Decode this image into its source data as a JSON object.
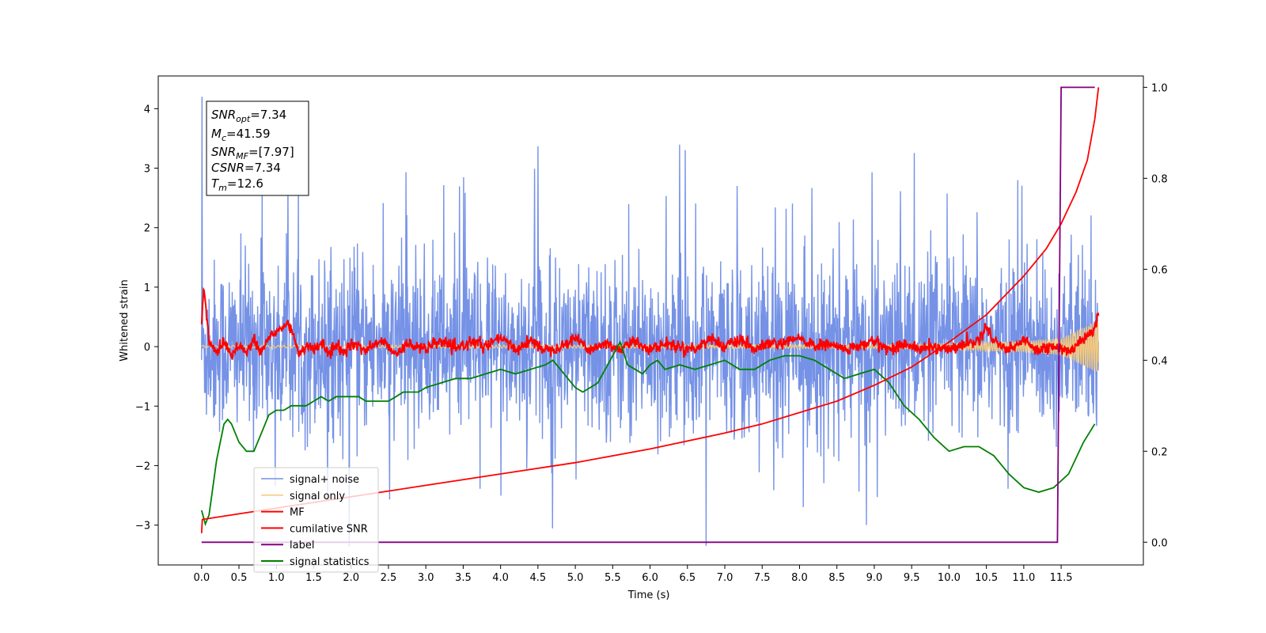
{
  "chart_data": {
    "type": "line",
    "title": "",
    "xlabel": "Time (s)",
    "ylabel": "Whitened strain",
    "xlim": [
      -0.58,
      12.6
    ],
    "ylim": [
      -3.67,
      4.55
    ],
    "y2lim": [
      -0.05,
      1.025
    ],
    "grid": false,
    "legend_position": "lower-left",
    "x_ticks": [
      "0.0",
      "0.5",
      "1.0",
      "1.5",
      "2.0",
      "2.5",
      "3.0",
      "3.5",
      "4.0",
      "4.5",
      "5.0",
      "5.5",
      "6.0",
      "6.5",
      "7.0",
      "7.5",
      "8.0",
      "8.5",
      "9.0",
      "9.5",
      "10.0",
      "10.5",
      "11.0",
      "11.5"
    ],
    "y_ticks": [
      "4",
      "3",
      "2",
      "1",
      "0",
      "−1",
      "−2",
      "−3"
    ],
    "y2_ticks": [
      "1.0",
      "0.8",
      "0.6",
      "0.4",
      "0.2",
      "0.0"
    ],
    "info_box": {
      "snr_opt": "7.34",
      "mc": "41.59",
      "snr_mf": "[7.97]",
      "csnr": "7.34",
      "tm": "12.6"
    },
    "series": [
      {
        "name": "signal+ noise",
        "color": "#7592e6",
        "axis": "left",
        "envelope": {
          "mean": 0.0,
          "std": 0.72,
          "spike_max": 4.2,
          "spike_min": -3.35
        }
      },
      {
        "name": "signal only",
        "color": "#f5c97a",
        "axis": "left",
        "description_points": {
          "x": [
            0.0,
            9.0,
            10.0,
            11.0,
            11.5,
            12.0
          ],
          "amplitude": [
            0.02,
            0.03,
            0.05,
            0.09,
            0.14,
            0.45
          ]
        }
      },
      {
        "name": "MF",
        "color": "#ff0000",
        "axis": "left",
        "x": [
          0.0,
          0.03,
          0.1,
          0.2,
          0.3,
          0.4,
          0.5,
          0.6,
          0.7,
          0.8,
          0.9,
          1.0,
          1.1,
          1.15,
          1.2,
          1.3,
          1.4,
          1.5,
          1.6,
          1.7,
          1.8,
          1.9,
          2.0,
          2.2,
          2.4,
          2.6,
          2.8,
          3.0,
          3.2,
          3.4,
          3.6,
          3.8,
          4.0,
          4.2,
          4.4,
          4.6,
          4.8,
          5.0,
          5.2,
          5.4,
          5.6,
          5.8,
          6.0,
          6.2,
          6.4,
          6.6,
          6.8,
          7.0,
          7.2,
          7.4,
          7.6,
          7.8,
          8.0,
          8.2,
          8.4,
          8.6,
          8.8,
          9.0,
          9.2,
          9.4,
          9.6,
          9.8,
          10.0,
          10.2,
          10.4,
          10.5,
          10.6,
          10.8,
          11.0,
          11.2,
          11.4,
          11.6,
          11.8,
          11.95,
          12.0
        ],
        "values": [
          0.4,
          0.98,
          0.1,
          -0.1,
          0.1,
          -0.15,
          0.05,
          -0.1,
          0.1,
          -0.1,
          0.15,
          0.25,
          0.35,
          0.38,
          0.3,
          -0.1,
          0.0,
          -0.05,
          0.05,
          -0.1,
          0.0,
          -0.1,
          0.05,
          -0.05,
          0.1,
          -0.1,
          0.05,
          -0.05,
          0.1,
          -0.05,
          0.1,
          0.0,
          0.15,
          -0.05,
          0.1,
          -0.05,
          0.0,
          0.15,
          -0.05,
          0.05,
          -0.05,
          0.1,
          -0.05,
          0.05,
          0.0,
          -0.05,
          0.15,
          0.0,
          0.1,
          -0.05,
          0.05,
          0.05,
          0.15,
          0.0,
          0.05,
          -0.05,
          0.0,
          0.1,
          -0.05,
          0.05,
          -0.05,
          0.0,
          -0.05,
          0.05,
          0.1,
          0.35,
          0.1,
          -0.05,
          0.1,
          -0.05,
          0.0,
          -0.1,
          0.15,
          0.3,
          0.6
        ]
      },
      {
        "name": "cumilative SNR",
        "color": "#ff0000",
        "axis": "right",
        "x": [
          0.0,
          0.01,
          1.0,
          2.0,
          3.0,
          4.0,
          5.0,
          6.0,
          7.0,
          7.5,
          8.0,
          8.5,
          9.0,
          9.5,
          10.0,
          10.5,
          11.0,
          11.3,
          11.5,
          11.7,
          11.85,
          11.95,
          12.0
        ],
        "values": [
          0.02,
          0.05,
          0.075,
          0.1,
          0.125,
          0.15,
          0.175,
          0.205,
          0.24,
          0.26,
          0.285,
          0.31,
          0.345,
          0.385,
          0.44,
          0.5,
          0.585,
          0.645,
          0.7,
          0.77,
          0.84,
          0.93,
          1.0
        ]
      },
      {
        "name": "label",
        "color": "#800080",
        "axis": "right",
        "x": [
          0.0,
          11.45,
          11.5,
          11.95
        ],
        "values": [
          0.0,
          0.0,
          1.0,
          1.0
        ]
      },
      {
        "name": "signal statistics",
        "color": "#008000",
        "axis": "right",
        "x": [
          0.0,
          0.05,
          0.1,
          0.2,
          0.3,
          0.35,
          0.4,
          0.5,
          0.6,
          0.7,
          0.8,
          0.9,
          1.0,
          1.1,
          1.2,
          1.3,
          1.4,
          1.5,
          1.6,
          1.7,
          1.8,
          1.9,
          2.0,
          2.1,
          2.2,
          2.3,
          2.4,
          2.5,
          2.6,
          2.7,
          2.8,
          2.9,
          3.0,
          3.2,
          3.4,
          3.6,
          3.8,
          4.0,
          4.2,
          4.4,
          4.6,
          4.7,
          4.8,
          4.9,
          5.0,
          5.1,
          5.2,
          5.3,
          5.4,
          5.5,
          5.6,
          5.7,
          5.8,
          5.9,
          6.0,
          6.1,
          6.2,
          6.4,
          6.6,
          6.8,
          7.0,
          7.2,
          7.4,
          7.6,
          7.8,
          8.0,
          8.2,
          8.4,
          8.6,
          8.8,
          9.0,
          9.2,
          9.4,
          9.6,
          9.8,
          10.0,
          10.2,
          10.4,
          10.6,
          10.8,
          11.0,
          11.2,
          11.4,
          11.6,
          11.8,
          11.95
        ],
        "values": [
          0.07,
          0.04,
          0.06,
          0.18,
          0.26,
          0.27,
          0.26,
          0.22,
          0.2,
          0.2,
          0.24,
          0.28,
          0.29,
          0.29,
          0.3,
          0.3,
          0.3,
          0.31,
          0.32,
          0.31,
          0.32,
          0.32,
          0.32,
          0.32,
          0.31,
          0.31,
          0.31,
          0.31,
          0.32,
          0.33,
          0.33,
          0.33,
          0.34,
          0.35,
          0.36,
          0.36,
          0.37,
          0.38,
          0.37,
          0.38,
          0.39,
          0.4,
          0.38,
          0.36,
          0.34,
          0.33,
          0.34,
          0.35,
          0.38,
          0.41,
          0.44,
          0.39,
          0.38,
          0.37,
          0.39,
          0.4,
          0.38,
          0.39,
          0.38,
          0.39,
          0.4,
          0.38,
          0.38,
          0.4,
          0.41,
          0.41,
          0.4,
          0.38,
          0.36,
          0.37,
          0.38,
          0.35,
          0.3,
          0.27,
          0.23,
          0.2,
          0.21,
          0.21,
          0.19,
          0.15,
          0.12,
          0.11,
          0.12,
          0.15,
          0.22,
          0.26
        ]
      }
    ]
  }
}
